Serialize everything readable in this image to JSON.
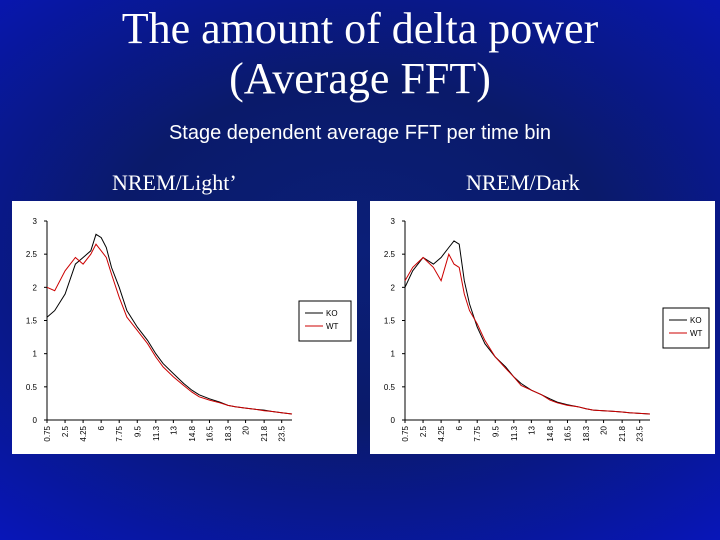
{
  "slide": {
    "title_line1": "The amount of delta power",
    "title_line2": "(Average FFT)",
    "subtitle": "Stage dependent average FFT per time bin"
  },
  "chart_data": [
    {
      "type": "line",
      "title": "NREM/Light’",
      "xlabel": "",
      "ylabel": "",
      "ylim": [
        0,
        3
      ],
      "y_ticks": [
        "0",
        "0.5",
        "1",
        "1.5",
        "2",
        "2.5",
        "3"
      ],
      "x_tick_labels": [
        "0.75",
        "2.5",
        "4.25",
        "6",
        "7.75",
        "9.5",
        "11.3",
        "13",
        "14.8",
        "16.5",
        "18.3",
        "20",
        "21.8",
        "23.5"
      ],
      "grid": false,
      "legend_position": "right",
      "x": [
        0.75,
        1.5,
        2.5,
        3.5,
        4.25,
        5.0,
        5.5,
        6.0,
        6.5,
        7.0,
        7.75,
        8.5,
        9.5,
        10.5,
        11.3,
        12.0,
        13.0,
        14.0,
        14.8,
        15.5,
        16.5,
        17.5,
        18.3,
        19.0,
        20.0,
        21.0,
        21.8,
        22.5,
        23.5,
        24.5
      ],
      "series": [
        {
          "name": "KO",
          "color": "#000000",
          "values": [
            1.55,
            1.65,
            1.9,
            2.35,
            2.45,
            2.55,
            2.8,
            2.75,
            2.6,
            2.3,
            2.0,
            1.65,
            1.4,
            1.2,
            1.0,
            0.85,
            0.7,
            0.55,
            0.45,
            0.38,
            0.32,
            0.27,
            0.22,
            0.2,
            0.18,
            0.16,
            0.15,
            0.13,
            0.11,
            0.09
          ]
        },
        {
          "name": "WT",
          "color": "#cc0000",
          "values": [
            2.0,
            1.95,
            2.25,
            2.45,
            2.35,
            2.5,
            2.65,
            2.55,
            2.45,
            2.2,
            1.85,
            1.55,
            1.35,
            1.15,
            0.95,
            0.8,
            0.65,
            0.52,
            0.42,
            0.35,
            0.3,
            0.26,
            0.22,
            0.2,
            0.18,
            0.16,
            0.14,
            0.13,
            0.11,
            0.09
          ]
        }
      ]
    },
    {
      "type": "line",
      "title": "NREM/Dark",
      "xlabel": "",
      "ylabel": "",
      "ylim": [
        0,
        3
      ],
      "y_ticks": [
        "0",
        "0.5",
        "1",
        "1.5",
        "2",
        "2.5",
        "3"
      ],
      "x_tick_labels": [
        "0.75",
        "2.5",
        "4.25",
        "6",
        "7.75",
        "9.5",
        "11.3",
        "13",
        "14.8",
        "16.5",
        "18.3",
        "20",
        "21.8",
        "23.5"
      ],
      "grid": false,
      "legend_position": "right",
      "x": [
        0.75,
        1.5,
        2.5,
        3.5,
        4.25,
        5.0,
        5.5,
        6.0,
        6.5,
        7.0,
        7.75,
        8.5,
        9.5,
        10.5,
        11.3,
        12.0,
        13.0,
        14.0,
        14.8,
        15.5,
        16.5,
        17.5,
        18.3,
        19.0,
        20.0,
        21.0,
        21.8,
        22.5,
        23.5,
        24.5
      ],
      "series": [
        {
          "name": "KO",
          "color": "#000000",
          "values": [
            2.0,
            2.25,
            2.45,
            2.35,
            2.45,
            2.6,
            2.7,
            2.65,
            2.1,
            1.75,
            1.4,
            1.15,
            0.95,
            0.8,
            0.65,
            0.55,
            0.45,
            0.38,
            0.32,
            0.27,
            0.23,
            0.2,
            0.17,
            0.15,
            0.14,
            0.13,
            0.12,
            0.11,
            0.1,
            0.09
          ]
        },
        {
          "name": "WT",
          "color": "#cc0000",
          "values": [
            2.1,
            2.3,
            2.45,
            2.3,
            2.1,
            2.5,
            2.35,
            2.3,
            1.9,
            1.65,
            1.45,
            1.2,
            0.95,
            0.78,
            0.65,
            0.52,
            0.45,
            0.38,
            0.3,
            0.26,
            0.22,
            0.2,
            0.17,
            0.15,
            0.14,
            0.13,
            0.12,
            0.11,
            0.1,
            0.09
          ]
        }
      ]
    }
  ]
}
